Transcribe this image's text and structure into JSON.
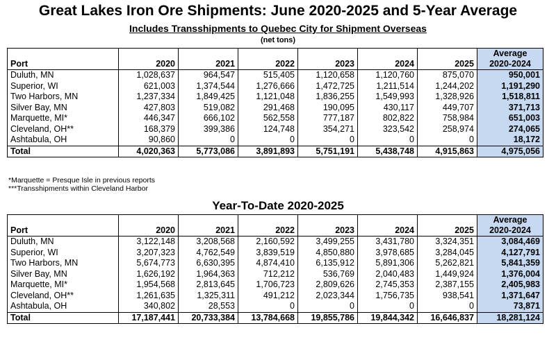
{
  "title": "Great Lakes Iron Ore Shipments: June 2020-2025 and 5-Year Average",
  "subtitle": "Includes Transshipments to Quebec City for Shipment Overseas",
  "unit": "(net tons)",
  "june": {
    "headers": [
      "Port",
      "2020",
      "2021",
      "2022",
      "2023",
      "2024",
      "2025"
    ],
    "avg_header_line1": "Average",
    "avg_header_line2": "2020-2024",
    "rows": [
      {
        "port": "Duluth, MN",
        "values": [
          "1,028,637",
          "964,547",
          "515,405",
          "1,120,658",
          "1,120,760",
          "875,070"
        ],
        "avg": "950,001"
      },
      {
        "port": "Superior, WI",
        "values": [
          "621,003",
          "1,374,544",
          "1,276,666",
          "1,472,725",
          "1,211,514",
          "1,244,202"
        ],
        "avg": "1,191,290"
      },
      {
        "port": "Two Harbors, MN",
        "values": [
          "1,237,334",
          "1,849,425",
          "1,121,048",
          "1,836,255",
          "1,549,993",
          "1,328,926"
        ],
        "avg": "1,518,811"
      },
      {
        "port": "Silver Bay, MN",
        "values": [
          "427,803",
          "519,082",
          "291,468",
          "190,095",
          "430,117",
          "449,707"
        ],
        "avg": "371,713"
      },
      {
        "port": "Marquette, MI*",
        "values": [
          "446,347",
          "666,102",
          "562,558",
          "777,187",
          "802,822",
          "758,984"
        ],
        "avg": "651,003"
      },
      {
        "port": "Cleveland, OH**",
        "values": [
          "168,379",
          "399,386",
          "124,748",
          "354,271",
          "323,542",
          "258,974"
        ],
        "avg": "274,065"
      },
      {
        "port": "Ashtabula, OH",
        "values": [
          "90,860",
          "0",
          "0",
          "0",
          "0",
          "0"
        ],
        "avg": "18,172"
      }
    ],
    "total": {
      "port": "Total",
      "values": [
        "4,020,363",
        "5,773,086",
        "3,891,893",
        "5,751,191",
        "5,438,748",
        "4,915,863"
      ],
      "avg": "4,975,056"
    }
  },
  "footnotes": [
    "*Marquette = Presque Isle in previous reports",
    "***Transshipments within Cleveland Harbor"
  ],
  "ytd_title": "Year-To-Date 2020-2025",
  "ytd": {
    "headers": [
      "Port",
      "2020",
      "2021",
      "2022",
      "2023",
      "2024",
      "2025"
    ],
    "avg_header_line1": "Average",
    "avg_header_line2": "2020-2024",
    "rows": [
      {
        "port": "Duluth, MN",
        "values": [
          "3,122,148",
          "3,208,568",
          "2,160,592",
          "3,499,255",
          "3,431,780",
          "3,324,351"
        ],
        "avg": "3,084,469"
      },
      {
        "port": "Superior, WI",
        "values": [
          "3,207,323",
          "4,762,549",
          "3,839,519",
          "4,850,880",
          "3,978,685",
          "3,284,045"
        ],
        "avg": "4,127,791"
      },
      {
        "port": "Two Harbors, MN",
        "values": [
          "5,674,773",
          "6,630,395",
          "4,874,410",
          "6,135,912",
          "5,891,306",
          "5,262,821"
        ],
        "avg": "5,841,359"
      },
      {
        "port": "Silver Bay, MN",
        "values": [
          "1,626,192",
          "1,964,363",
          "712,212",
          "536,769",
          "2,040,483",
          "1,449,924"
        ],
        "avg": "1,376,004"
      },
      {
        "port": "Marquette, MI*",
        "values": [
          "1,954,568",
          "2,813,645",
          "1,706,723",
          "2,809,626",
          "2,745,353",
          "2,387,155"
        ],
        "avg": "2,405,983"
      },
      {
        "port": "Cleveland, OH**",
        "values": [
          "1,261,635",
          "1,325,311",
          "491,212",
          "2,023,344",
          "1,756,735",
          "938,541"
        ],
        "avg": "1,371,647"
      },
      {
        "port": "Ashtabula, OH",
        "values": [
          "340,802",
          "28,553",
          "0",
          "0",
          "0",
          "0"
        ],
        "avg": "73,871"
      }
    ],
    "total": {
      "port": "Total",
      "values": [
        "17,187,441",
        "20,733,384",
        "13,784,668",
        "19,855,786",
        "19,844,342",
        "16,646,837"
      ],
      "avg": "18,281,124"
    }
  }
}
